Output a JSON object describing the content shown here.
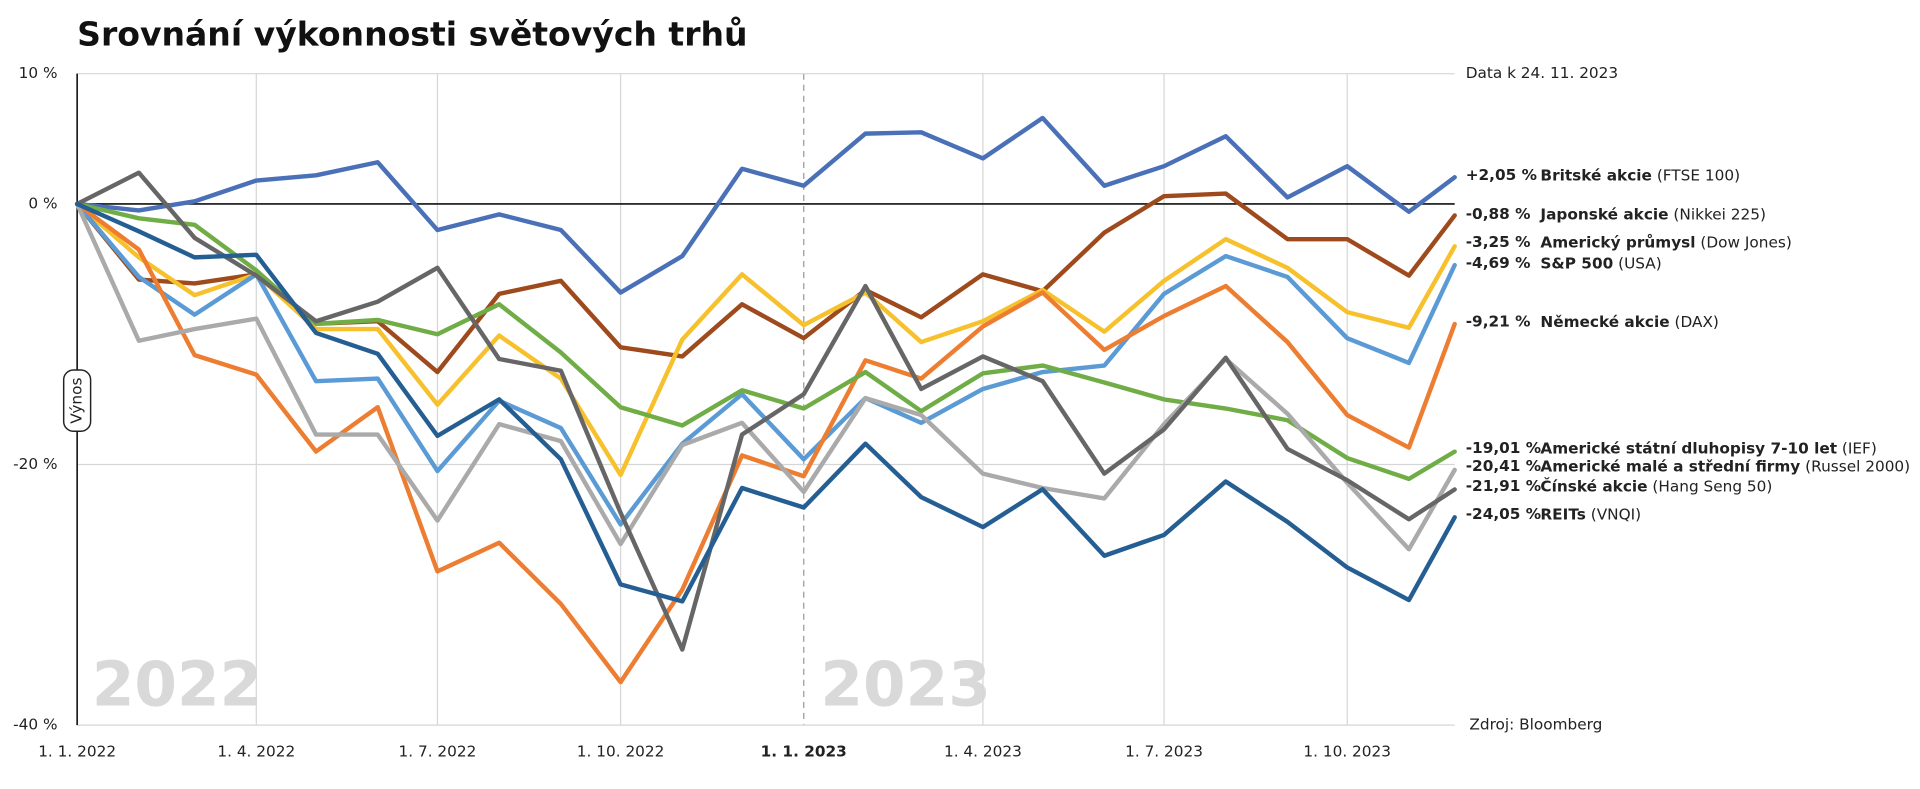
{
  "chart_data": {
    "type": "line",
    "title": "Srovnání výkonnosti světových trhů",
    "note": "Data k 24. 11. 2023",
    "source": "Zdroj: Bloomberg",
    "ylabel": "Výnos",
    "annotations": [
      "2022",
      "2023"
    ],
    "x": [
      "2022-01-01",
      "2022-02-01",
      "2022-03-01",
      "2022-04-01",
      "2022-05-01",
      "2022-06-01",
      "2022-07-01",
      "2022-08-01",
      "2022-09-01",
      "2022-10-01",
      "2022-11-01",
      "2022-12-01",
      "2023-01-01",
      "2023-02-01",
      "2023-03-01",
      "2023-04-01",
      "2023-05-01",
      "2023-06-01",
      "2023-07-01",
      "2023-08-01",
      "2023-09-01",
      "2023-10-01",
      "2023-11-01",
      "2023-11-24"
    ],
    "xlim": [
      "2022-01-01",
      "2023-11-24"
    ],
    "xticks": [
      {
        "value": "2022-01-01",
        "label": "1. 1. 2022"
      },
      {
        "value": "2022-04-01",
        "label": "1. 4. 2022"
      },
      {
        "value": "2022-07-01",
        "label": "1. 7. 2022"
      },
      {
        "value": "2022-10-01",
        "label": "1. 10. 2022"
      },
      {
        "value": "2023-01-01",
        "label": "1. 1. 2023"
      },
      {
        "value": "2023-04-01",
        "label": "1. 4. 2023"
      },
      {
        "value": "2023-07-01",
        "label": "1. 7. 2023"
      },
      {
        "value": "2023-10-01",
        "label": "1. 10. 2023"
      }
    ],
    "divider": "2023-01-01",
    "ylim": [
      -40,
      10
    ],
    "yticks": [
      {
        "value": 10,
        "label": "10 %"
      },
      {
        "value": 0,
        "label": "0 %"
      },
      {
        "value": -20,
        "label": "-20 %"
      },
      {
        "value": -40,
        "label": "-40 %"
      }
    ],
    "grid": true,
    "series": [
      {
        "name": "Britské akcie",
        "detail": "(FTSE 100)",
        "color": "#4a70b8",
        "values": [
          0,
          -0.5,
          0.2,
          1.8,
          2.2,
          3.2,
          -2.0,
          -0.8,
          -2.0,
          -6.8,
          -4.0,
          2.7,
          1.4,
          5.4,
          5.5,
          3.5,
          6.6,
          1.4,
          2.9,
          5.2,
          0.5,
          2.9,
          -0.6,
          2.05
        ],
        "value_labels": [
          null,
          null,
          null,
          null,
          null,
          null,
          null,
          null,
          null,
          null,
          null,
          null,
          null,
          null,
          null,
          null,
          null,
          null,
          null,
          null,
          null,
          null,
          null,
          "+2,05 %"
        ]
      },
      {
        "name": "Japonské akcie",
        "detail": "(Nikkei 225)",
        "color": "#9e4a1c",
        "values": [
          0,
          -5.8,
          -6.1,
          -5.4,
          -9.2,
          -9.0,
          -12.9,
          -6.9,
          -5.9,
          -11.0,
          -11.7,
          -7.7,
          -10.3,
          -6.6,
          -8.7,
          -5.4,
          -6.7,
          -2.2,
          0.6,
          0.8,
          -2.7,
          -2.7,
          -5.5,
          -0.88
        ],
        "value_labels": [
          null,
          null,
          null,
          null,
          null,
          null,
          null,
          null,
          null,
          null,
          null,
          null,
          null,
          null,
          null,
          null,
          null,
          null,
          null,
          null,
          null,
          null,
          null,
          "-0,88 %"
        ]
      },
      {
        "name": "Americký průmysl",
        "detail": "(Dow Jones)",
        "color": "#f6c12c",
        "values": [
          0,
          -4.1,
          -7.0,
          -5.4,
          -9.6,
          -9.6,
          -15.4,
          -10.1,
          -13.4,
          -20.8,
          -10.4,
          -5.4,
          -9.3,
          -6.8,
          -10.6,
          -9.0,
          -6.6,
          -9.8,
          -5.9,
          -2.7,
          -4.9,
          -8.3,
          -9.5,
          -3.25
        ],
        "value_labels": [
          null,
          null,
          null,
          null,
          null,
          null,
          null,
          null,
          null,
          null,
          null,
          null,
          null,
          null,
          null,
          null,
          null,
          null,
          null,
          null,
          null,
          null,
          null,
          "-3,25 %"
        ]
      },
      {
        "name": "S&P 500",
        "detail": "(USA)",
        "color": "#5b9bd5",
        "values": [
          0,
          -5.6,
          -8.5,
          -5.4,
          -13.6,
          -13.4,
          -20.5,
          -15.1,
          -17.2,
          -24.6,
          -18.4,
          -14.6,
          -19.6,
          -14.9,
          -16.8,
          -14.2,
          -12.9,
          -12.4,
          -6.9,
          -4.0,
          -5.6,
          -10.3,
          -12.2,
          -4.69
        ],
        "value_labels": [
          null,
          null,
          null,
          null,
          null,
          null,
          null,
          null,
          null,
          null,
          null,
          null,
          null,
          null,
          null,
          null,
          null,
          null,
          null,
          null,
          null,
          null,
          null,
          "-4,69 %"
        ]
      },
      {
        "name": "Německé akcie",
        "detail": "(DAX)",
        "color": "#ed7d31",
        "values": [
          0,
          -3.5,
          -11.6,
          -13.1,
          -19.0,
          -15.6,
          -28.2,
          -26.0,
          -30.7,
          -36.7,
          -29.6,
          -19.3,
          -20.9,
          -12.0,
          -13.4,
          -9.4,
          -6.8,
          -11.2,
          -8.6,
          -6.3,
          -10.6,
          -16.2,
          -18.7,
          -9.21
        ],
        "value_labels": [
          null,
          null,
          null,
          null,
          null,
          null,
          null,
          null,
          null,
          null,
          null,
          null,
          null,
          null,
          null,
          null,
          null,
          null,
          null,
          null,
          null,
          null,
          null,
          "-9,21 %"
        ]
      },
      {
        "name": "Americké státní dluhopisy 7-10 let",
        "detail": "(IEF)",
        "color": "#70ad47",
        "values": [
          0,
          -1.1,
          -1.6,
          -5.1,
          -9.2,
          -8.9,
          -10.0,
          -7.7,
          -11.4,
          -15.6,
          -17.0,
          -14.3,
          -15.7,
          -12.9,
          -15.9,
          -13.0,
          -12.4,
          -13.7,
          -15.0,
          -15.7,
          -16.6,
          -19.5,
          -21.1,
          -19.01
        ],
        "value_labels": [
          null,
          null,
          null,
          null,
          null,
          null,
          null,
          null,
          null,
          null,
          null,
          null,
          null,
          null,
          null,
          null,
          null,
          null,
          null,
          null,
          null,
          null,
          null,
          "-19,01 %"
        ]
      },
      {
        "name": "Americké malé a střední firmy",
        "detail": "(Russel 2000)",
        "color": "#aaaaaa",
        "values": [
          0,
          -10.5,
          -9.6,
          -8.8,
          -17.7,
          -17.7,
          -24.3,
          -16.9,
          -18.2,
          -26.1,
          -18.5,
          -16.8,
          -22.1,
          -14.9,
          -16.2,
          -20.7,
          -21.8,
          -22.6,
          -16.9,
          -11.9,
          -16.1,
          -21.4,
          -26.5,
          -20.41
        ],
        "value_labels": [
          null,
          null,
          null,
          null,
          null,
          null,
          null,
          null,
          null,
          null,
          null,
          null,
          null,
          null,
          null,
          null,
          null,
          null,
          null,
          null,
          null,
          null,
          null,
          "-20,41 %"
        ]
      },
      {
        "name": "Čínské akcie",
        "detail": "(Hang Seng 50)",
        "color": "#666666",
        "values": [
          0,
          2.4,
          -2.6,
          -5.5,
          -9.0,
          -7.5,
          -4.9,
          -11.9,
          -12.8,
          -23.7,
          -34.2,
          -17.7,
          -14.6,
          -6.3,
          -14.2,
          -11.7,
          -13.6,
          -20.7,
          -17.3,
          -11.8,
          -18.8,
          -21.2,
          -24.2,
          -21.91
        ],
        "value_labels": [
          null,
          null,
          null,
          null,
          null,
          null,
          null,
          null,
          null,
          null,
          null,
          null,
          null,
          null,
          null,
          null,
          null,
          null,
          null,
          null,
          null,
          null,
          null,
          "-21,91 %"
        ]
      },
      {
        "name": "REITs",
        "detail": "(VNQI)",
        "color": "#245e92",
        "values": [
          0,
          -2.1,
          -4.1,
          -3.9,
          -9.9,
          -11.5,
          -17.8,
          -15.0,
          -19.6,
          -29.2,
          -30.5,
          -21.8,
          -23.3,
          -18.4,
          -22.5,
          -24.8,
          -21.9,
          -27.0,
          -25.4,
          -21.3,
          -24.4,
          -27.9,
          -30.4,
          -24.05
        ],
        "value_labels": [
          null,
          null,
          null,
          null,
          null,
          null,
          null,
          null,
          null,
          null,
          null,
          null,
          null,
          null,
          null,
          null,
          null,
          null,
          null,
          null,
          null,
          null,
          null,
          "-24,05 %"
        ]
      }
    ]
  }
}
